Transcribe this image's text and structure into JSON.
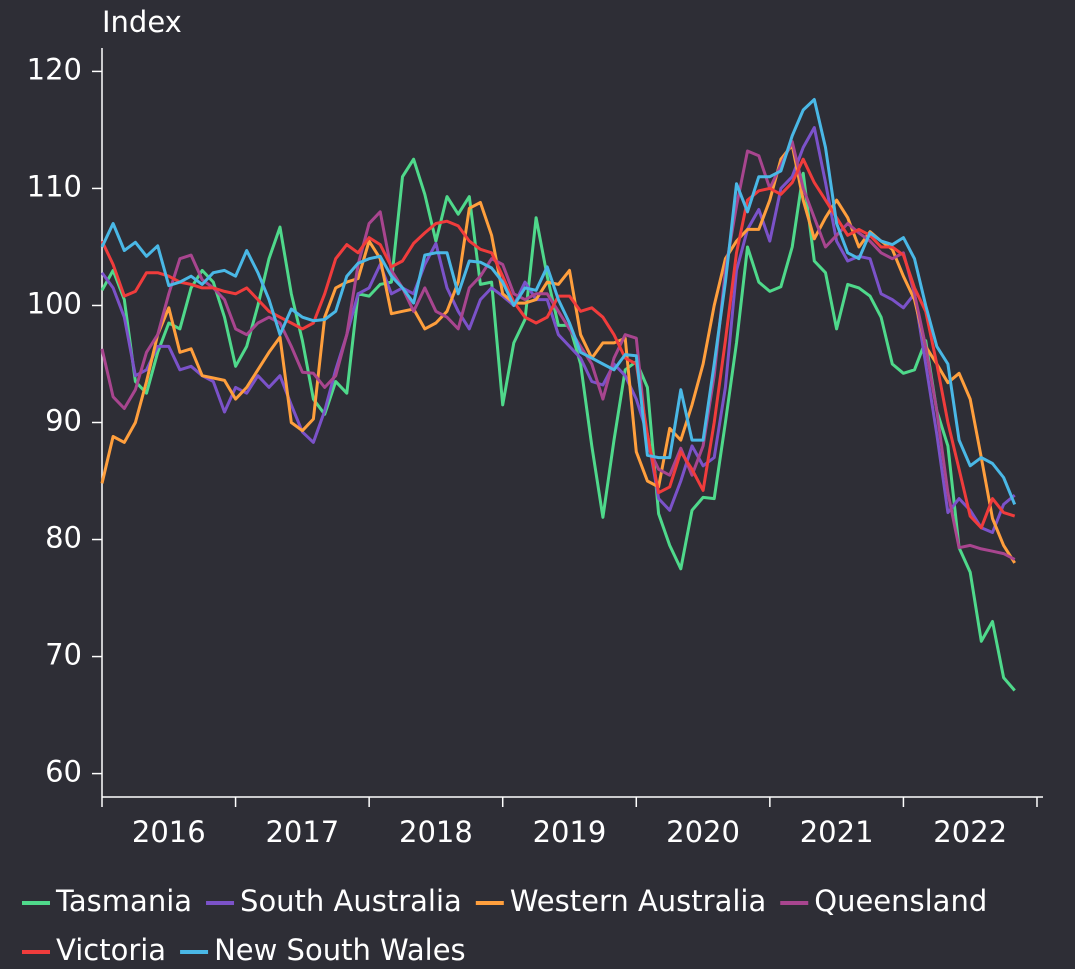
{
  "chart_data": {
    "type": "line",
    "y_label": "Index",
    "x": [
      2016,
      2016.083,
      2016.167,
      2016.25,
      2016.333,
      2016.417,
      2016.5,
      2016.583,
      2016.667,
      2016.75,
      2016.833,
      2016.917,
      2017,
      2017.083,
      2017.167,
      2017.25,
      2017.333,
      2017.417,
      2017.5,
      2017.583,
      2017.667,
      2017.75,
      2017.833,
      2017.917,
      2018,
      2018.083,
      2018.167,
      2018.25,
      2018.333,
      2018.417,
      2018.5,
      2018.583,
      2018.667,
      2018.75,
      2018.833,
      2018.917,
      2019,
      2019.083,
      2019.167,
      2019.25,
      2019.333,
      2019.417,
      2019.5,
      2019.583,
      2019.667,
      2019.75,
      2019.833,
      2019.917,
      2020,
      2020.083,
      2020.167,
      2020.25,
      2020.333,
      2020.417,
      2020.5,
      2020.583,
      2020.667,
      2020.75,
      2020.833,
      2020.917,
      2021,
      2021.083,
      2021.167,
      2021.25,
      2021.333,
      2021.417,
      2021.5,
      2021.583,
      2021.667,
      2021.75,
      2021.833,
      2021.917,
      2022,
      2022.083,
      2022.167,
      2022.25,
      2022.333,
      2022.417,
      2022.5,
      2022.583,
      2022.667,
      2022.75,
      2022.833
    ],
    "xlim": [
      2016,
      2023.05
    ],
    "xticks": [
      2016,
      2017,
      2018,
      2019,
      2020,
      2021,
      2022,
      2023
    ],
    "year_labels": [
      2016,
      2017,
      2018,
      2019,
      2020,
      2021,
      2022
    ],
    "ylim": [
      58,
      122
    ],
    "yticks": [
      60,
      70,
      80,
      90,
      100,
      110,
      120
    ],
    "series": [
      {
        "name": "Tasmania",
        "color": "#4fd98b",
        "values": [
          101.3,
          103,
          100.5,
          93.5,
          92.5,
          96,
          98.5,
          98,
          101.5,
          103,
          102,
          99,
          94.8,
          96.5,
          100,
          104,
          106.7,
          101,
          97,
          92,
          90.7,
          93.5,
          92.5,
          101,
          100.8,
          101.8,
          102,
          111,
          112.5,
          109.5,
          105.5,
          109.3,
          107.8,
          109.3,
          101.8,
          102,
          91.5,
          96.8,
          98.8,
          107.5,
          102.5,
          98.3,
          98.3,
          95,
          88,
          81.9,
          88.5,
          94.5,
          95.2,
          93,
          82.2,
          79.5,
          77.5,
          82.5,
          83.6,
          83.5,
          90,
          96.8,
          105,
          102,
          101.2,
          101.6,
          105,
          111.3,
          103.8,
          102.8,
          98,
          101.8,
          101.5,
          100.8,
          99,
          95,
          94.2,
          94.5,
          97,
          91,
          88,
          79.3,
          77.2,
          71.3,
          73,
          68.2,
          67.1
        ]
      },
      {
        "name": "South Australia",
        "color": "#7b52c9",
        "values": [
          102.8,
          101.5,
          99,
          94,
          94.5,
          96.5,
          96.5,
          94.5,
          94.8,
          94,
          93.5,
          90.9,
          93,
          92.5,
          94,
          93,
          94,
          91.5,
          89.2,
          88.3,
          91,
          94.5,
          97.5,
          101,
          101.5,
          103.5,
          101,
          101.5,
          101,
          103.5,
          105.3,
          101.5,
          99.5,
          98,
          100.5,
          101.5,
          100.8,
          100,
          102,
          100.5,
          100.5,
          97.5,
          96.5,
          95.5,
          93.5,
          93.2,
          95,
          94,
          92,
          89,
          83.5,
          82.5,
          85,
          88,
          86.3,
          87,
          93,
          103,
          106.5,
          108.2,
          105.5,
          110,
          111,
          113.5,
          115.2,
          110.5,
          105.5,
          103.8,
          104.2,
          104,
          101,
          100.5,
          99.8,
          101,
          95,
          89,
          82.3,
          83.5,
          82.5,
          81,
          80.6,
          83,
          83.8
        ]
      },
      {
        "name": "Western Australia",
        "color": "#ff9f3d",
        "values": [
          84.8,
          88.8,
          88.3,
          90,
          93.5,
          97.5,
          99.8,
          96,
          96.3,
          94,
          93.8,
          93.6,
          92,
          93,
          94.5,
          96,
          97.3,
          90,
          89.3,
          90.3,
          99,
          101.5,
          102,
          102.3,
          105.5,
          104,
          99.3,
          99.5,
          99.7,
          98,
          98.5,
          99.5,
          102,
          108.3,
          108.8,
          106,
          101,
          100.2,
          100.2,
          100.5,
          102,
          101.8,
          103,
          97.5,
          95.5,
          96.8,
          96.8,
          97.2,
          87.5,
          85,
          84.5,
          89.5,
          88.5,
          91.5,
          95,
          100,
          104,
          105.5,
          106.5,
          106.5,
          109,
          112.5,
          113.7,
          109,
          105.7,
          107.5,
          109,
          107.5,
          105,
          106.3,
          105.5,
          104.8,
          102.5,
          100.5,
          96.5,
          95,
          93.4,
          94.2,
          92,
          87,
          81.8,
          79.5,
          78
        ]
      },
      {
        "name": "Queensland",
        "color": "#a8458f",
        "values": [
          96.3,
          92.2,
          91.2,
          92.8,
          96,
          97.5,
          101,
          104,
          104.3,
          102.2,
          101.5,
          100.5,
          98,
          97.5,
          98.5,
          99,
          98.5,
          96.5,
          94.3,
          94.2,
          93,
          94,
          97.5,
          103.5,
          107,
          108,
          103,
          101.5,
          99.5,
          101.5,
          99.5,
          99,
          98,
          101.5,
          102.5,
          104,
          103.5,
          101,
          100.5,
          101,
          101,
          99.5,
          98,
          96.5,
          95,
          92,
          95.5,
          97.5,
          97.2,
          88,
          86,
          85.5,
          87.8,
          85.5,
          88,
          94,
          103,
          108.5,
          113.2,
          112.8,
          110,
          112,
          114,
          110,
          107.5,
          105,
          106,
          107,
          106.2,
          105.5,
          104.5,
          104,
          104.5,
          101,
          96.5,
          91,
          84,
          79.3,
          79.5,
          79.2,
          79,
          78.8,
          78.3
        ]
      },
      {
        "name": "Victoria",
        "color": "#f03c3c",
        "values": [
          105.5,
          103.5,
          100.8,
          101.2,
          102.8,
          102.8,
          102.5,
          102,
          101.8,
          101.5,
          101.5,
          101.2,
          101,
          101.5,
          100.5,
          99.5,
          99,
          98.5,
          98,
          98.5,
          101,
          104,
          105.2,
          104.5,
          105.8,
          105.2,
          103.3,
          103.8,
          105.3,
          106.2,
          107,
          107.2,
          106.8,
          105.5,
          104.8,
          104.5,
          102.5,
          100.3,
          99,
          98.5,
          99,
          100.8,
          100.8,
          99.5,
          99.8,
          99,
          97.5,
          95.5,
          95,
          89,
          84,
          84.5,
          87.5,
          86,
          84.2,
          90,
          97,
          104.5,
          109,
          109.8,
          110,
          109.5,
          110.5,
          112.5,
          110.5,
          109,
          107.5,
          106,
          106.5,
          106,
          105,
          105,
          104.3,
          101.5,
          99.5,
          95,
          90,
          86,
          82,
          81,
          83.5,
          82.3,
          82
        ]
      },
      {
        "name": "New South Wales",
        "color": "#4ab8e6",
        "values": [
          105,
          107,
          104.7,
          105.4,
          104.2,
          105.1,
          101.7,
          102,
          102.5,
          101.8,
          102.8,
          103,
          102.5,
          104.7,
          102.8,
          100.5,
          97.5,
          99.7,
          99,
          98.7,
          98.8,
          99.5,
          102.5,
          103.6,
          104,
          104.2,
          102.5,
          101.5,
          100.2,
          104.3,
          104.5,
          104.5,
          101,
          103.8,
          103.7,
          103.2,
          102,
          100,
          101.5,
          101.3,
          103.3,
          100.5,
          98.5,
          96,
          95.5,
          95,
          94.5,
          95.8,
          95.7,
          87.2,
          87,
          87,
          92.8,
          88.5,
          88.5,
          95,
          102,
          110.4,
          108,
          111,
          111,
          111.5,
          114.5,
          116.7,
          117.6,
          113.5,
          107,
          104.5,
          104,
          106.2,
          105.5,
          105.2,
          105.8,
          104,
          100,
          96.5,
          95,
          88.5,
          86.3,
          87,
          86.5,
          85.3,
          83
        ]
      }
    ]
  }
}
